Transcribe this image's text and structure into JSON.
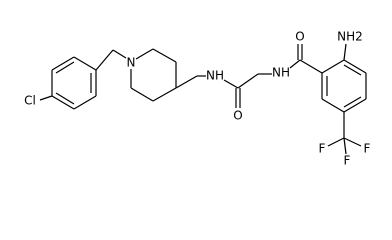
{
  "atoms": {
    "chlorine": "Cl",
    "piperidine_n": "N",
    "amide_nh_1": "NH",
    "oxygen_1": "O",
    "amide_nh_2": "NH",
    "oxygen_2": "O",
    "amine": "NH2",
    "fluorine_1": "F",
    "fluorine_2": "F",
    "fluorine_3": "F"
  }
}
